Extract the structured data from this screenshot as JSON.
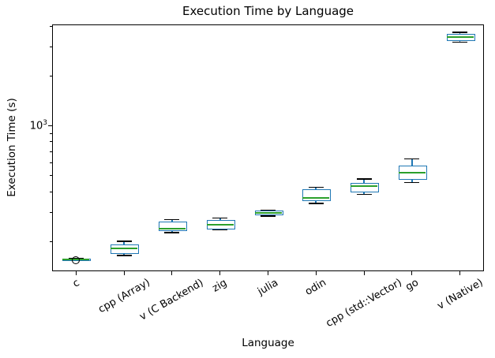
{
  "title": "Execution Time by Language",
  "chart_data": {
    "type": "box",
    "title": "Execution Time by Language",
    "xlabel": "Language",
    "ylabel": "Execution Time (s)",
    "yscale": "log",
    "ylim": [
      132,
      4100
    ],
    "y_major_ticks": [
      {
        "value": 1000,
        "base": "10",
        "exp": "3"
      }
    ],
    "y_minor_ticks": [
      200,
      300,
      400,
      500,
      600,
      700,
      800,
      900,
      2000,
      3000,
      4000
    ],
    "categories": [
      "c",
      "cpp (Array)",
      "v (C Backend)",
      "zig",
      "julia",
      "odin",
      "cpp (std::Vector)",
      "go",
      "v (Native)"
    ],
    "series": [
      {
        "label": "c",
        "whislo": 153,
        "q1": 154,
        "med": 155,
        "q3": 156,
        "whishi": 157,
        "fliers": [
          154
        ]
      },
      {
        "label": "cpp (Array)",
        "whislo": 165,
        "q1": 171,
        "med": 181,
        "q3": 190,
        "whishi": 200,
        "fliers": []
      },
      {
        "label": "v (C Backend)",
        "whislo": 227,
        "q1": 233,
        "med": 240,
        "q3": 262,
        "whishi": 271,
        "fliers": []
      },
      {
        "label": "zig",
        "whislo": 235,
        "q1": 240,
        "med": 251,
        "q3": 268,
        "whishi": 277,
        "fliers": []
      },
      {
        "label": "julia",
        "whislo": 285,
        "q1": 291,
        "med": 298,
        "q3": 306,
        "whishi": 309,
        "fliers": []
      },
      {
        "label": "odin",
        "whislo": 338,
        "q1": 357,
        "med": 365,
        "q3": 411,
        "whishi": 425,
        "fliers": []
      },
      {
        "label": "cpp (std::Vector)",
        "whislo": 385,
        "q1": 402,
        "med": 434,
        "q3": 449,
        "whishi": 475,
        "fliers": []
      },
      {
        "label": "go",
        "whislo": 454,
        "q1": 480,
        "med": 518,
        "q3": 571,
        "whishi": 631,
        "fliers": []
      },
      {
        "label": "v (Native)",
        "whislo": 3200,
        "q1": 3305,
        "med": 3450,
        "q3": 3565,
        "whishi": 3670,
        "fliers": []
      }
    ],
    "colors": {
      "box": "#1f77b4",
      "median": "#2ca02c",
      "whisker": "#1f77b4",
      "cap": "#000000",
      "flier_edge": "#000000",
      "axis": "#000000"
    }
  }
}
